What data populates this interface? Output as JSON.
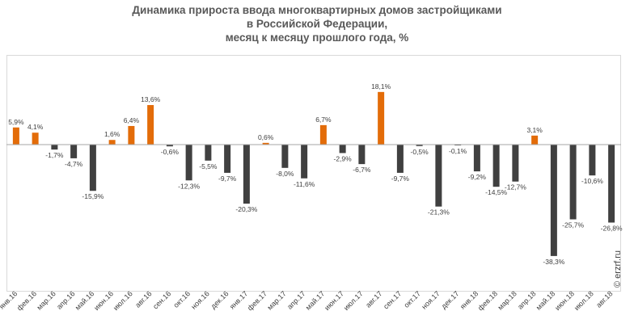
{
  "title_lines": [
    "Динамика прироста ввода многоквартирных домов застройщиками",
    "в Российской Федерации,",
    "месяц к месяцу прошлого года, %"
  ],
  "watermark": "© erzrf.ru",
  "colors": {
    "positive": "#e36c09",
    "negative": "#404040",
    "axis": "#a6a6a6",
    "label": "#404040"
  },
  "chart_data": {
    "type": "bar",
    "categories": [
      "янв.16",
      "фев.16",
      "мар.16",
      "апр.16",
      "май.16",
      "июн.16",
      "июл.16",
      "авг.16",
      "сен.16",
      "окт.16",
      "ноя.16",
      "дек.16",
      "янв.17",
      "фев.17",
      "мар.17",
      "апр.17",
      "май.17",
      "июн.17",
      "июл.17",
      "авг.17",
      "сен.17",
      "окт.17",
      "ноя.17",
      "дек.17",
      "янв.18",
      "фев.18",
      "мар.18",
      "апр.18",
      "май.18",
      "июн.18",
      "июл.18",
      "авг.18"
    ],
    "values": [
      5.9,
      4.1,
      -1.7,
      -4.7,
      -15.9,
      1.6,
      6.4,
      13.6,
      -0.6,
      -12.3,
      -5.5,
      -9.7,
      -20.3,
      0.6,
      -8.0,
      -11.6,
      6.7,
      -2.9,
      -6.7,
      18.1,
      -9.7,
      -0.5,
      -21.3,
      -0.1,
      -9.2,
      -14.5,
      -12.7,
      3.1,
      -38.3,
      -25.7,
      -10.6,
      -26.8
    ],
    "data_labels": [
      "5,9%",
      "4,1%",
      "-1,7%",
      "-4,7%",
      "-15,9%",
      "1,6%",
      "6,4%",
      "13,6%",
      "-0,6%",
      "-12,3%",
      "-5,5%",
      "-9,7%",
      "-20,3%",
      "0,6%",
      "-8,0%",
      "-11,6%",
      "6,7%",
      "-2,9%",
      "-6,7%",
      "18,1%",
      "-9,7%",
      "-0,5%",
      "-21,3%",
      "-0,1%",
      "-9,2%",
      "-14,5%",
      "-12,7%",
      "3,1%",
      "-38,3%",
      "-25,7%",
      "-10,6%",
      "-26,8%"
    ],
    "ylim": [
      -50,
      30
    ],
    "grid": false,
    "legend": "none"
  }
}
